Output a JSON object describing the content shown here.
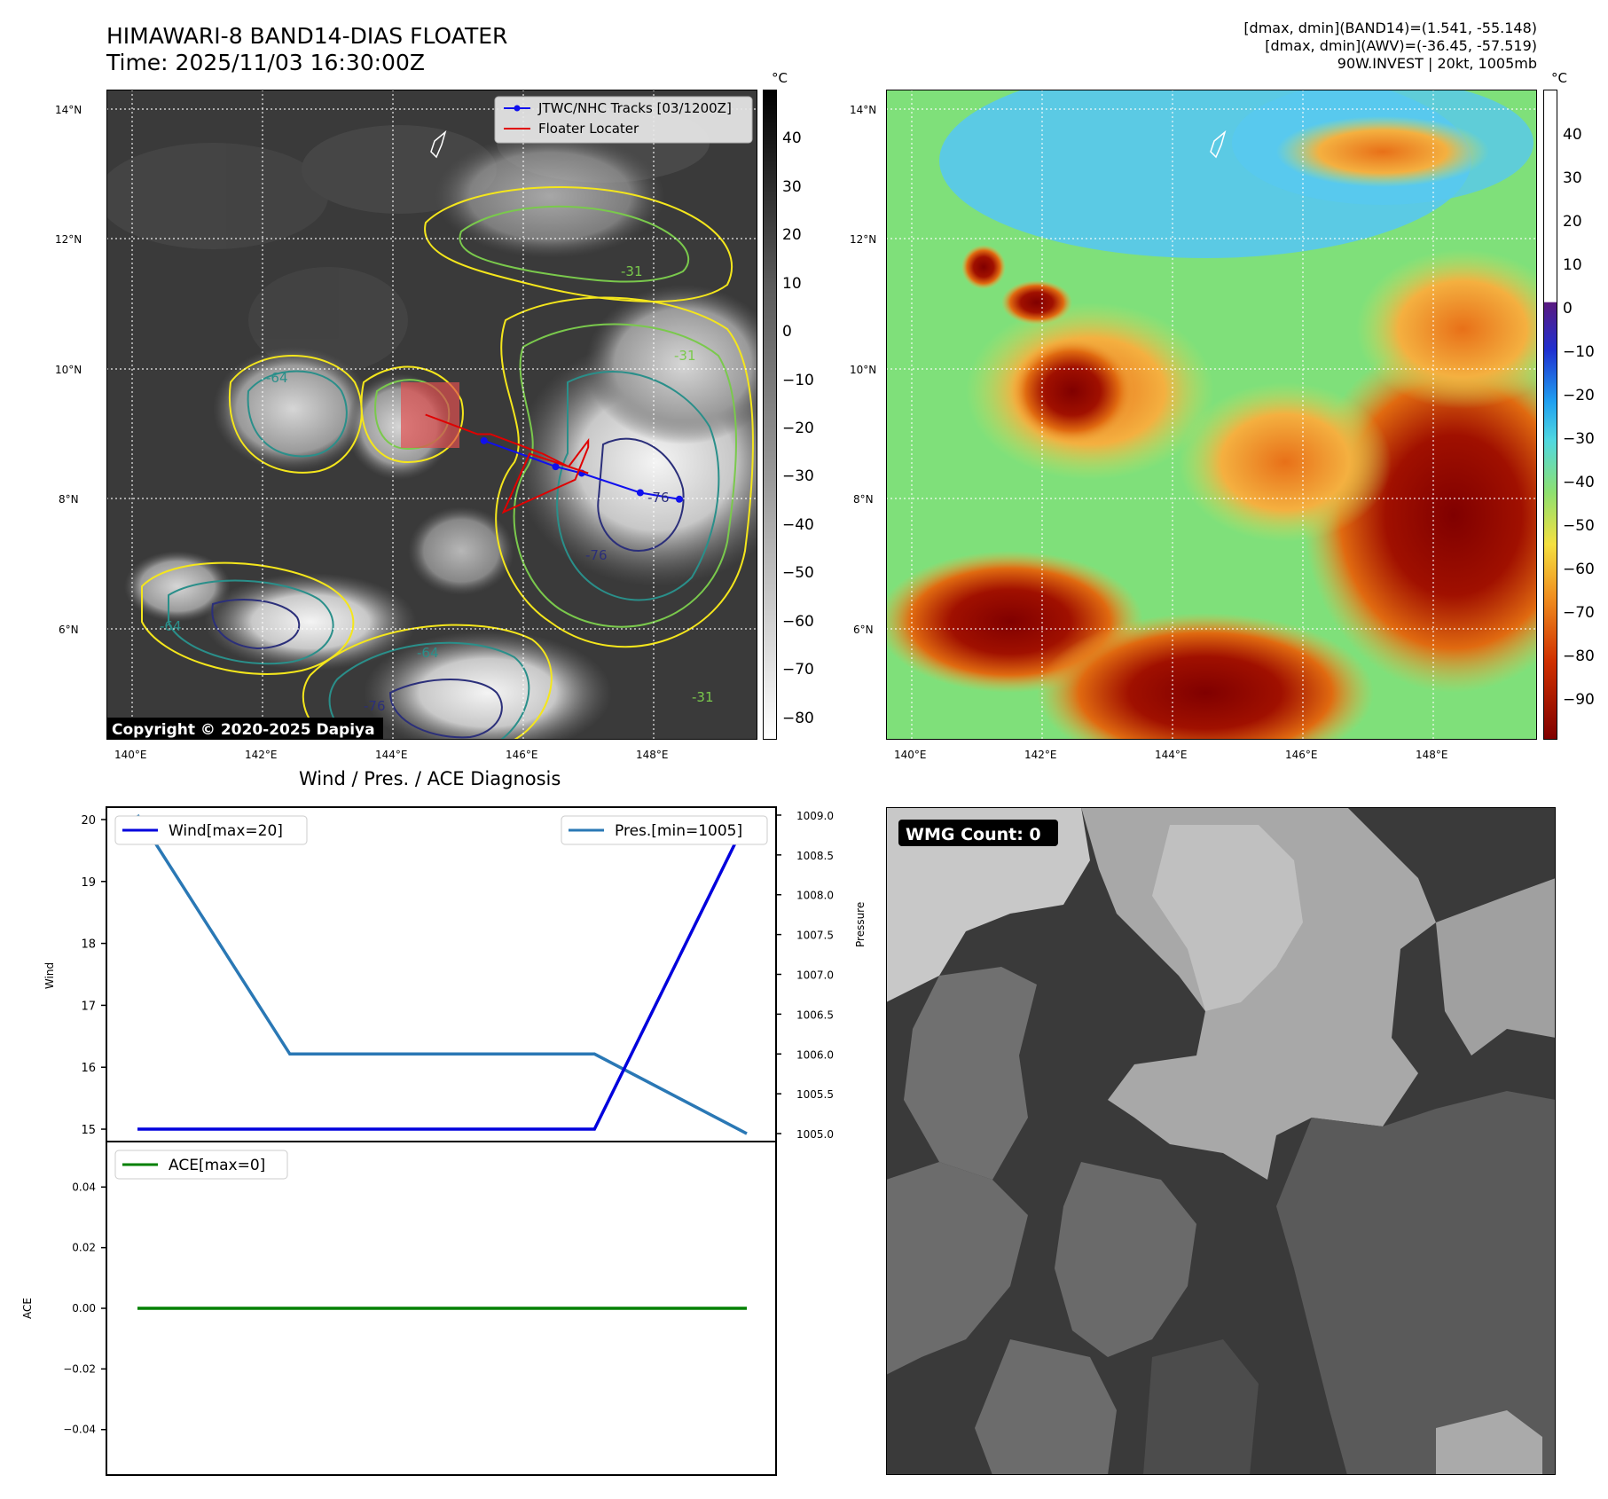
{
  "header": {
    "title_line1": "HIMAWARI-8 BAND14-DIAS FLOATER",
    "title_line2": "Time: 2025/11/03 16:30:00Z",
    "stats_line1": "[dmax, dmin](BAND14)=(1.541, -55.148)",
    "stats_line2": "[dmax, dmin](AWV)=(-36.45, -57.519)",
    "stats_line3": "90W.INVEST | 20kt, 1005mb"
  },
  "map_axes": {
    "lon_ticks": [
      "140°E",
      "142°E",
      "144°E",
      "146°E",
      "148°E"
    ],
    "lat_ticks": [
      "14°N",
      "12°N",
      "10°N",
      "8°N",
      "6°N"
    ],
    "lon_range": [
      139.6,
      149.6
    ],
    "lat_range": [
      4.4,
      14.4
    ]
  },
  "colorbar_ir": {
    "unit": "°C",
    "ticks": [
      "40",
      "30",
      "20",
      "10",
      "0",
      "−10",
      "−20",
      "−30",
      "−40",
      "−50",
      "−60",
      "−70",
      "−80"
    ],
    "range": [
      -85,
      50
    ]
  },
  "colorbar_awv": {
    "unit": "°C",
    "ticks": [
      "40",
      "30",
      "20",
      "10",
      "0",
      "−10",
      "−20",
      "−30",
      "−40",
      "−50",
      "−60",
      "−70",
      "−80",
      "−90"
    ],
    "range": [
      -100,
      50
    ]
  },
  "ir_panel": {
    "legend_tracks": "JTWC/NHC Tracks [03/1200Z]",
    "legend_floater": "Floater Locater",
    "copyright": "Copyright © 2020-2025 Dapiya",
    "contour_labels": [
      "-31",
      "-31",
      "-31",
      "-64",
      "-64",
      "-64",
      "-76",
      "-76",
      "-76"
    ],
    "colors": {
      "track": "#1010ee",
      "floater": "#e00000",
      "contour_yellow": "#f4e61c",
      "contour_green": "#7ac94c",
      "contour_teal": "#2a8f8a",
      "contour_navy": "#2b2f7a"
    }
  },
  "diagnosis": {
    "title": "Wind / Pres. / ACE Diagnosis",
    "wind_legend": "Wind[max=20]",
    "pres_legend": "Pres.[min=1005]",
    "ace_legend": "ACE[max=0]",
    "wind_ylabel": "Wind",
    "pres_ylabel": "Pressure",
    "ace_ylabel": "ACE",
    "wind_ticks": [
      "20",
      "19",
      "18",
      "17",
      "16",
      "15"
    ],
    "pres_ticks": [
      "1009.0",
      "1008.5",
      "1008.0",
      "1007.5",
      "1007.0",
      "1006.5",
      "1006.0",
      "1005.5",
      "1005.0"
    ],
    "ace_ticks": [
      "0.04",
      "0.02",
      "0.00",
      "−0.02",
      "−0.04"
    ]
  },
  "wmg_panel": {
    "label": "WMG Count: 0"
  },
  "chart_data": [
    {
      "type": "line",
      "panel": "wind_pressure",
      "x": [
        0,
        1,
        2,
        3,
        4
      ],
      "series": [
        {
          "name": "Wind[max=20]",
          "axis": "left",
          "color": "#0000dd",
          "values": [
            15,
            15,
            15,
            15,
            20
          ]
        },
        {
          "name": "Pres.[min=1005]",
          "axis": "right",
          "color": "#2a78b5",
          "values": [
            1009,
            1006,
            1006,
            1006,
            1005
          ]
        }
      ],
      "ylabel": "Wind",
      "ylim": [
        14.8,
        20.2
      ],
      "y2label": "Pressure",
      "y2lim": [
        1004.9,
        1009.1
      ],
      "legend": "top-left / top-right"
    },
    {
      "type": "line",
      "panel": "ace",
      "x": [
        0,
        1,
        2,
        3,
        4
      ],
      "series": [
        {
          "name": "ACE[max=0]",
          "color": "#008000",
          "values": [
            0,
            0,
            0,
            0,
            0
          ]
        }
      ],
      "ylabel": "ACE",
      "ylim": [
        -0.055,
        0.055
      ],
      "legend": "top-left"
    },
    {
      "type": "line",
      "panel": "ir_tracks",
      "series": [
        {
          "name": "JTWC/NHC Tracks [03/1200Z]",
          "color": "#1010ee",
          "lon": [
            145.4,
            146.5,
            146.9,
            147.8,
            148.4
          ],
          "lat": [
            9.0,
            8.6,
            8.5,
            8.2,
            8.1
          ]
        },
        {
          "name": "Floater Locater",
          "color": "#e00000",
          "lon": [
            144.5,
            145.3,
            145.5,
            146.3,
            146.7,
            147.0,
            147.0,
            146.8,
            145.7,
            146.1,
            147.0
          ],
          "lat": [
            9.4,
            9.1,
            9.1,
            8.8,
            8.6,
            9.0,
            8.9,
            8.4,
            7.9,
            8.8,
            8.5
          ]
        }
      ]
    }
  ]
}
